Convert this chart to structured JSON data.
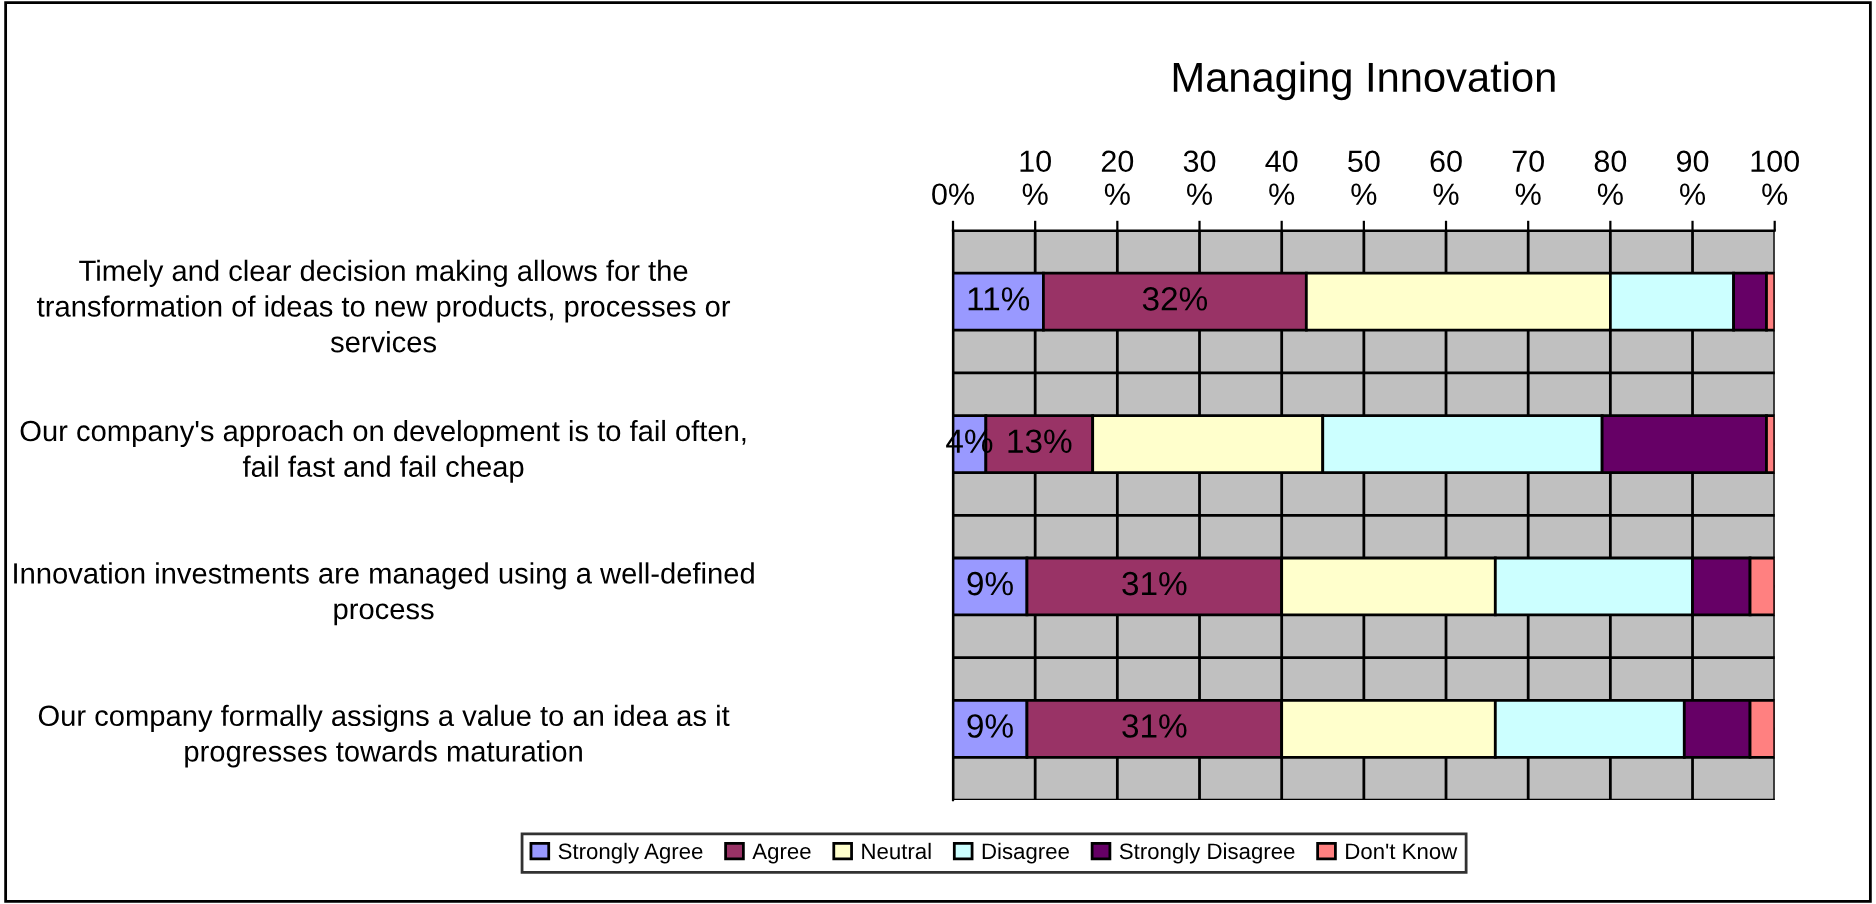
{
  "chart_data": {
    "type": "bar",
    "orientation": "horizontal",
    "stacked": true,
    "title": "Managing Innovation",
    "categories": [
      "Timely and clear decision making allows for the transformation of ideas to new products, processes or services",
      "Our company's approach on development is to fail often, fail fast and fail cheap",
      "Innovation investments are managed using a well-defined process",
      "Our company formally assigns a value to an idea as it progresses towards maturation"
    ],
    "series": [
      {
        "name": "Strongly Agree",
        "color": "#9999ff",
        "values": [
          11,
          4,
          9,
          9
        ],
        "value_labels": [
          "11%",
          "4%",
          "9%",
          "9%"
        ]
      },
      {
        "name": "Agree",
        "color": "#993366",
        "values": [
          32,
          13,
          31,
          31
        ],
        "value_labels": [
          "32%",
          "13%",
          "31%",
          "31%"
        ]
      },
      {
        "name": "Neutral",
        "color": "#ffffcc",
        "values": [
          37,
          28,
          26,
          26
        ]
      },
      {
        "name": "Disagree",
        "color": "#ccffff",
        "values": [
          15,
          34,
          24,
          23
        ]
      },
      {
        "name": "Strongly Disagree",
        "color": "#660066",
        "values": [
          4,
          20,
          7,
          8
        ]
      },
      {
        "name": "Don't Know",
        "color": "#ff8080",
        "values": [
          1,
          1,
          3,
          3
        ]
      }
    ],
    "xlim": [
      0,
      100
    ],
    "xticks": [
      {
        "value": 0,
        "label": "0%"
      },
      {
        "value": 10,
        "label": "10\n%"
      },
      {
        "value": 20,
        "label": "20\n%"
      },
      {
        "value": 30,
        "label": "30\n%"
      },
      {
        "value": 40,
        "label": "40\n%"
      },
      {
        "value": 50,
        "label": "50\n%"
      },
      {
        "value": 60,
        "label": "60\n%"
      },
      {
        "value": 70,
        "label": "70\n%"
      },
      {
        "value": 80,
        "label": "80\n%"
      },
      {
        "value": 90,
        "label": "90\n%"
      },
      {
        "value": 100,
        "label": "100\n%"
      }
    ],
    "grid": true,
    "legend": "bottom"
  }
}
